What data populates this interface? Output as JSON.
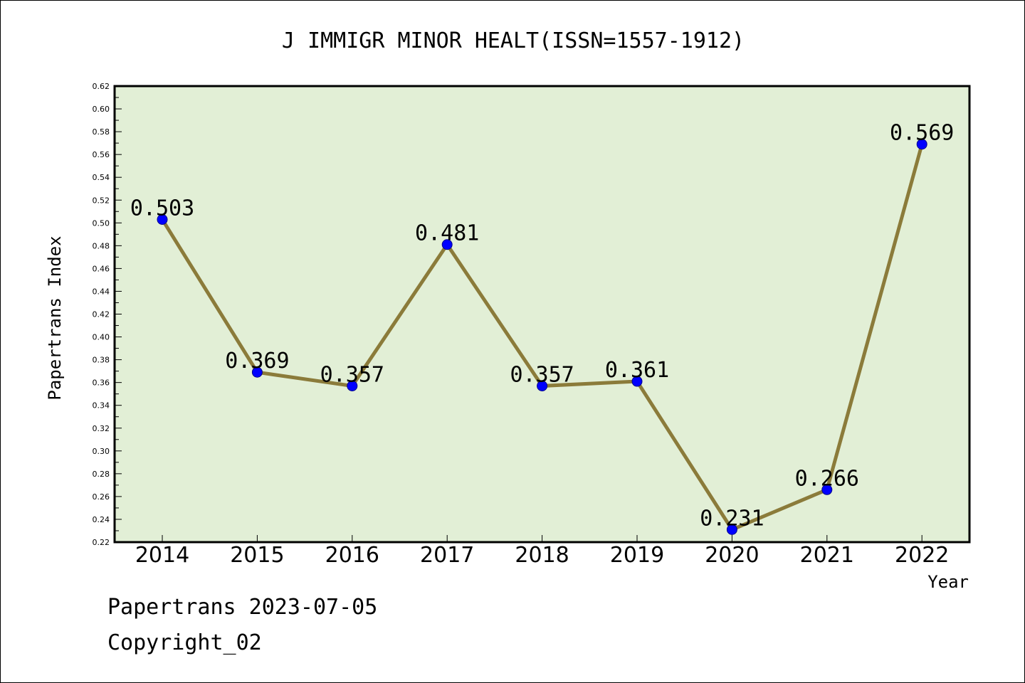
{
  "chart_data": {
    "type": "line",
    "title": "J IMMIGR MINOR HEALT(ISSN=1557-1912)",
    "xlabel": "Year",
    "ylabel": "Papertrans Index",
    "categories": [
      "2014",
      "2015",
      "2016",
      "2017",
      "2018",
      "2019",
      "2020",
      "2021",
      "2022"
    ],
    "series": [
      {
        "values": [
          0.503,
          0.369,
          0.357,
          0.481,
          0.357,
          0.361,
          0.231,
          0.266,
          0.569
        ],
        "labels": [
          "0.503",
          "0.369",
          "0.357",
          "0.481",
          "0.357",
          "0.361",
          "0.231",
          "0.266",
          "0.569"
        ]
      }
    ],
    "ylim": [
      0.22,
      0.62
    ],
    "yticks": [
      "0.22",
      "0.24",
      "0.26",
      "0.28",
      "0.30",
      "0.32",
      "0.34",
      "0.36",
      "0.38",
      "0.40",
      "0.42",
      "0.44",
      "0.46",
      "0.48",
      "0.50",
      "0.52",
      "0.54",
      "0.56",
      "0.58",
      "0.60",
      "0.62"
    ],
    "grid": false,
    "colors": {
      "plot_background": "#e2efd6",
      "line": "#8b7b3a",
      "marker": "#0000ff"
    }
  },
  "footer": {
    "line1": "Papertrans 2023-07-05",
    "line2": "Copyright_02"
  }
}
